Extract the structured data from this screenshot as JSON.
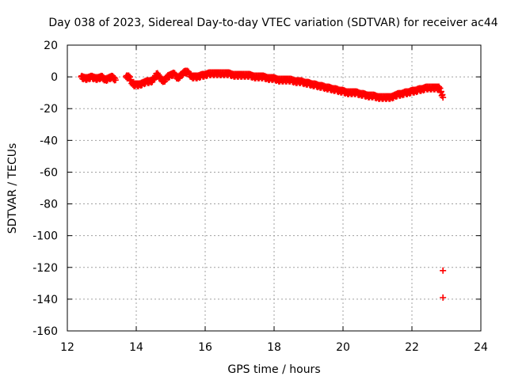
{
  "chart_data": {
    "type": "scatter",
    "title": "Day 038 of 2023, Sidereal Day-to-day VTEC variation (SDTVAR) for receiver ac44",
    "xlabel": "GPS time / hours",
    "ylabel": "SDTVAR / TECUs",
    "xlim": [
      12,
      24
    ],
    "ylim": [
      -160,
      20
    ],
    "xticks": [
      12,
      14,
      16,
      18,
      20,
      22,
      24
    ],
    "yticks": [
      20,
      0,
      -20,
      -40,
      -60,
      -80,
      -100,
      -120,
      -140,
      -160
    ],
    "xtick_labels": [
      "12",
      "14",
      "16",
      "18",
      "20",
      "22",
      "24"
    ],
    "ytick_labels": [
      "20",
      "0",
      "-20",
      "-40",
      "-60",
      "-80",
      "-100",
      "-120",
      "-140",
      "-160"
    ],
    "grid": true,
    "marker": "plus",
    "color": "#ff0000",
    "series": [
      {
        "name": "SDTVAR",
        "x": [
          12.4,
          12.5,
          12.6,
          12.7,
          12.8,
          12.9,
          13.0,
          13.1,
          13.2,
          13.3,
          13.4,
          13.7,
          13.8,
          13.9,
          14.0,
          14.1,
          14.2,
          14.3,
          14.4,
          14.5,
          14.6,
          14.7,
          14.8,
          14.9,
          15.0,
          15.1,
          15.2,
          15.3,
          15.4,
          15.5,
          15.6,
          15.7,
          15.8,
          15.9,
          16.0,
          16.1,
          16.2,
          16.3,
          16.4,
          16.5,
          16.6,
          16.7,
          16.8,
          16.9,
          17.0,
          17.1,
          17.2,
          17.3,
          17.4,
          17.5,
          17.6,
          17.7,
          17.8,
          17.9,
          18.0,
          18.1,
          18.2,
          18.3,
          18.4,
          18.5,
          18.6,
          18.7,
          18.8,
          18.9,
          19.0,
          19.1,
          19.2,
          19.3,
          19.4,
          19.5,
          19.6,
          19.7,
          19.8,
          19.9,
          20.0,
          20.1,
          20.2,
          20.3,
          20.4,
          20.5,
          20.6,
          20.7,
          20.8,
          20.9,
          21.0,
          21.1,
          21.2,
          21.3,
          21.4,
          21.5,
          21.6,
          21.7,
          21.8,
          21.9,
          22.0,
          22.1,
          22.2,
          22.3,
          22.4,
          22.5,
          22.6,
          22.7,
          22.8,
          22.9,
          22.9,
          22.9
        ],
        "y": [
          0,
          -1,
          -1,
          0,
          -1,
          -1,
          0,
          -2,
          -1,
          0,
          -2,
          0,
          0,
          -5,
          -5,
          -5,
          -4,
          -3,
          -3,
          -2,
          2,
          -1,
          -3,
          0,
          1,
          2,
          -1,
          1,
          3,
          3,
          0,
          0,
          0,
          1,
          1,
          2,
          2,
          2,
          2,
          2,
          2,
          2,
          1,
          1,
          1,
          1,
          1,
          1,
          0,
          0,
          0,
          0,
          -1,
          -1,
          -1,
          -2,
          -2,
          -2,
          -2,
          -2,
          -3,
          -3,
          -3,
          -4,
          -4,
          -5,
          -5,
          -6,
          -6,
          -7,
          -7,
          -8,
          -8,
          -9,
          -9,
          -10,
          -10,
          -10,
          -10,
          -11,
          -11,
          -12,
          -12,
          -12,
          -13,
          -13,
          -13,
          -13,
          -13,
          -12,
          -11,
          -11,
          -10,
          -10,
          -9,
          -9,
          -8,
          -8,
          -7,
          -7,
          -7,
          -7,
          -7,
          -13,
          -122,
          -139
        ]
      }
    ]
  }
}
